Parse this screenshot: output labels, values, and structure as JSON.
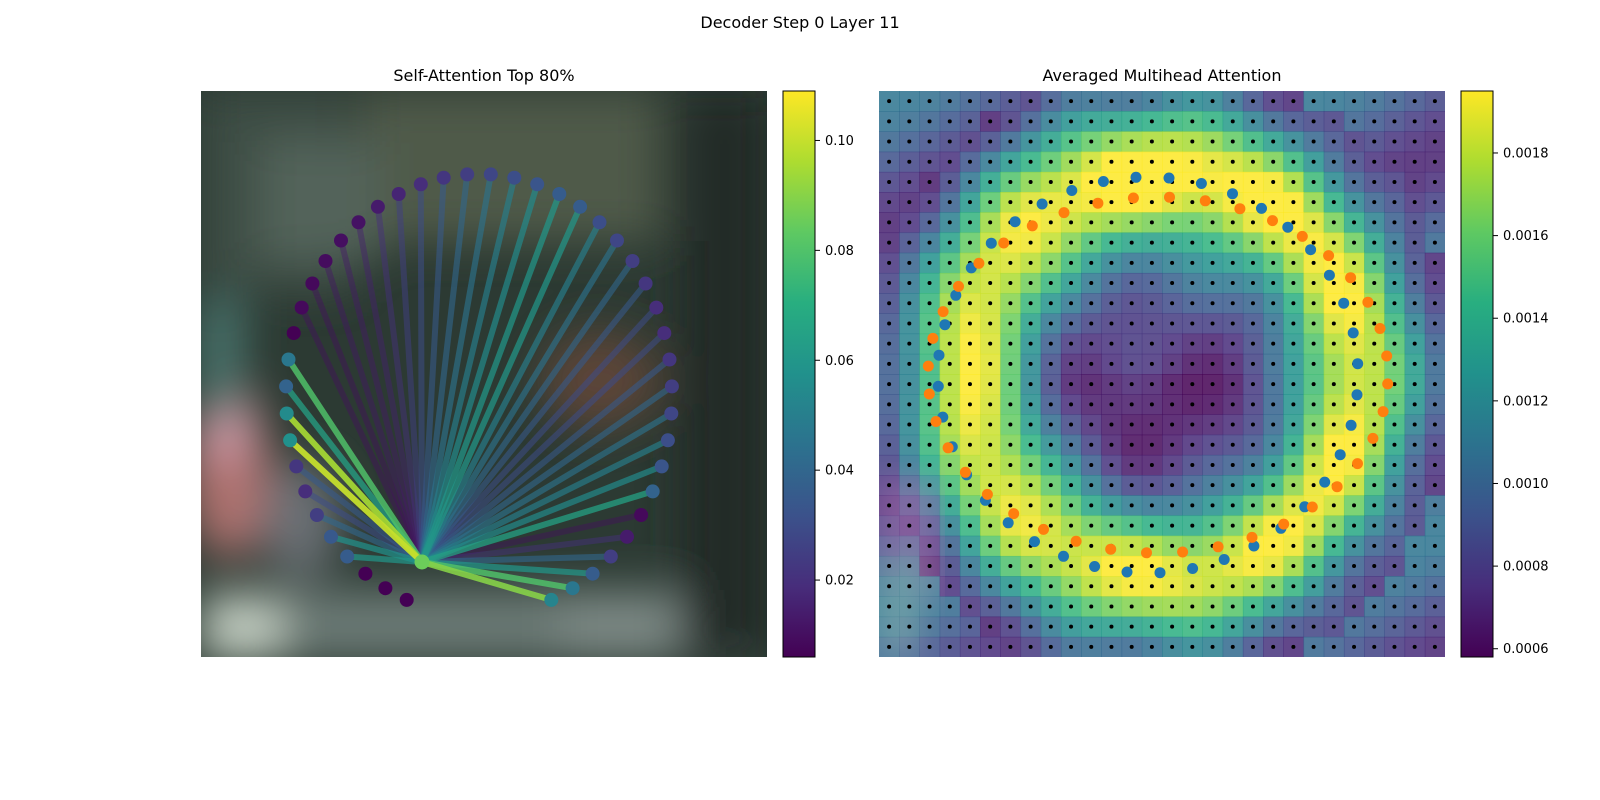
{
  "figure": {
    "suptitle": "Decoder Step 0 Layer 11"
  },
  "chart_data": [
    {
      "type": "scatter",
      "title": "Self-Attention Top 80%",
      "description": "Attention lines from a query point to 46 points on a circular contour, colored by attention weight",
      "background": "blurred image",
      "query_point": {
        "x": 0.392,
        "y": 0.166,
        "color": "#6ccd5a"
      },
      "weights": [
        0.005,
        0.005,
        0.006,
        0.06,
        0.058,
        0.04,
        0.03,
        0.035,
        0.1,
        0.095,
        0.065,
        0.08,
        0.006,
        0.01,
        0.01,
        0.012,
        0.013,
        0.015,
        0.02,
        0.025,
        0.03,
        0.035,
        0.04,
        0.045,
        0.05,
        0.055,
        0.06,
        0.06,
        0.05,
        0.045,
        0.04,
        0.035,
        0.03,
        0.03,
        0.035,
        0.04,
        0.045,
        0.05,
        0.055,
        0.065,
        0.01,
        0.02,
        0.04,
        0.06,
        0.08,
        0.09
      ],
      "colorbar": {
        "ticks": [
          "0.02",
          "0.04",
          "0.06",
          "0.08",
          "0.10"
        ],
        "ticks_values": [
          0.02,
          0.04,
          0.06,
          0.08,
          0.1
        ],
        "min": 0.006,
        "max": 0.109,
        "colormap": "viridis"
      },
      "grid": false
    },
    {
      "type": "heatmap",
      "title": "Averaged Multihead Attention",
      "grid_size": 28,
      "series": [
        {
          "name": "",
          "color": "#ff7f0e",
          "marker": "circle",
          "count": 40
        },
        {
          "name": "",
          "color": "#1f77b4",
          "marker": "circle",
          "count": 40
        }
      ],
      "colorbar": {
        "ticks": [
          "0.0006",
          "0.0008",
          "0.0010",
          "0.0012",
          "0.0014",
          "0.0016",
          "0.0018"
        ],
        "ticks_values": [
          0.0006,
          0.0008,
          0.001,
          0.0012,
          0.0014,
          0.0016,
          0.0018
        ],
        "min": 0.00058,
        "max": 0.00195,
        "colormap": "viridis"
      },
      "grid": false
    }
  ]
}
